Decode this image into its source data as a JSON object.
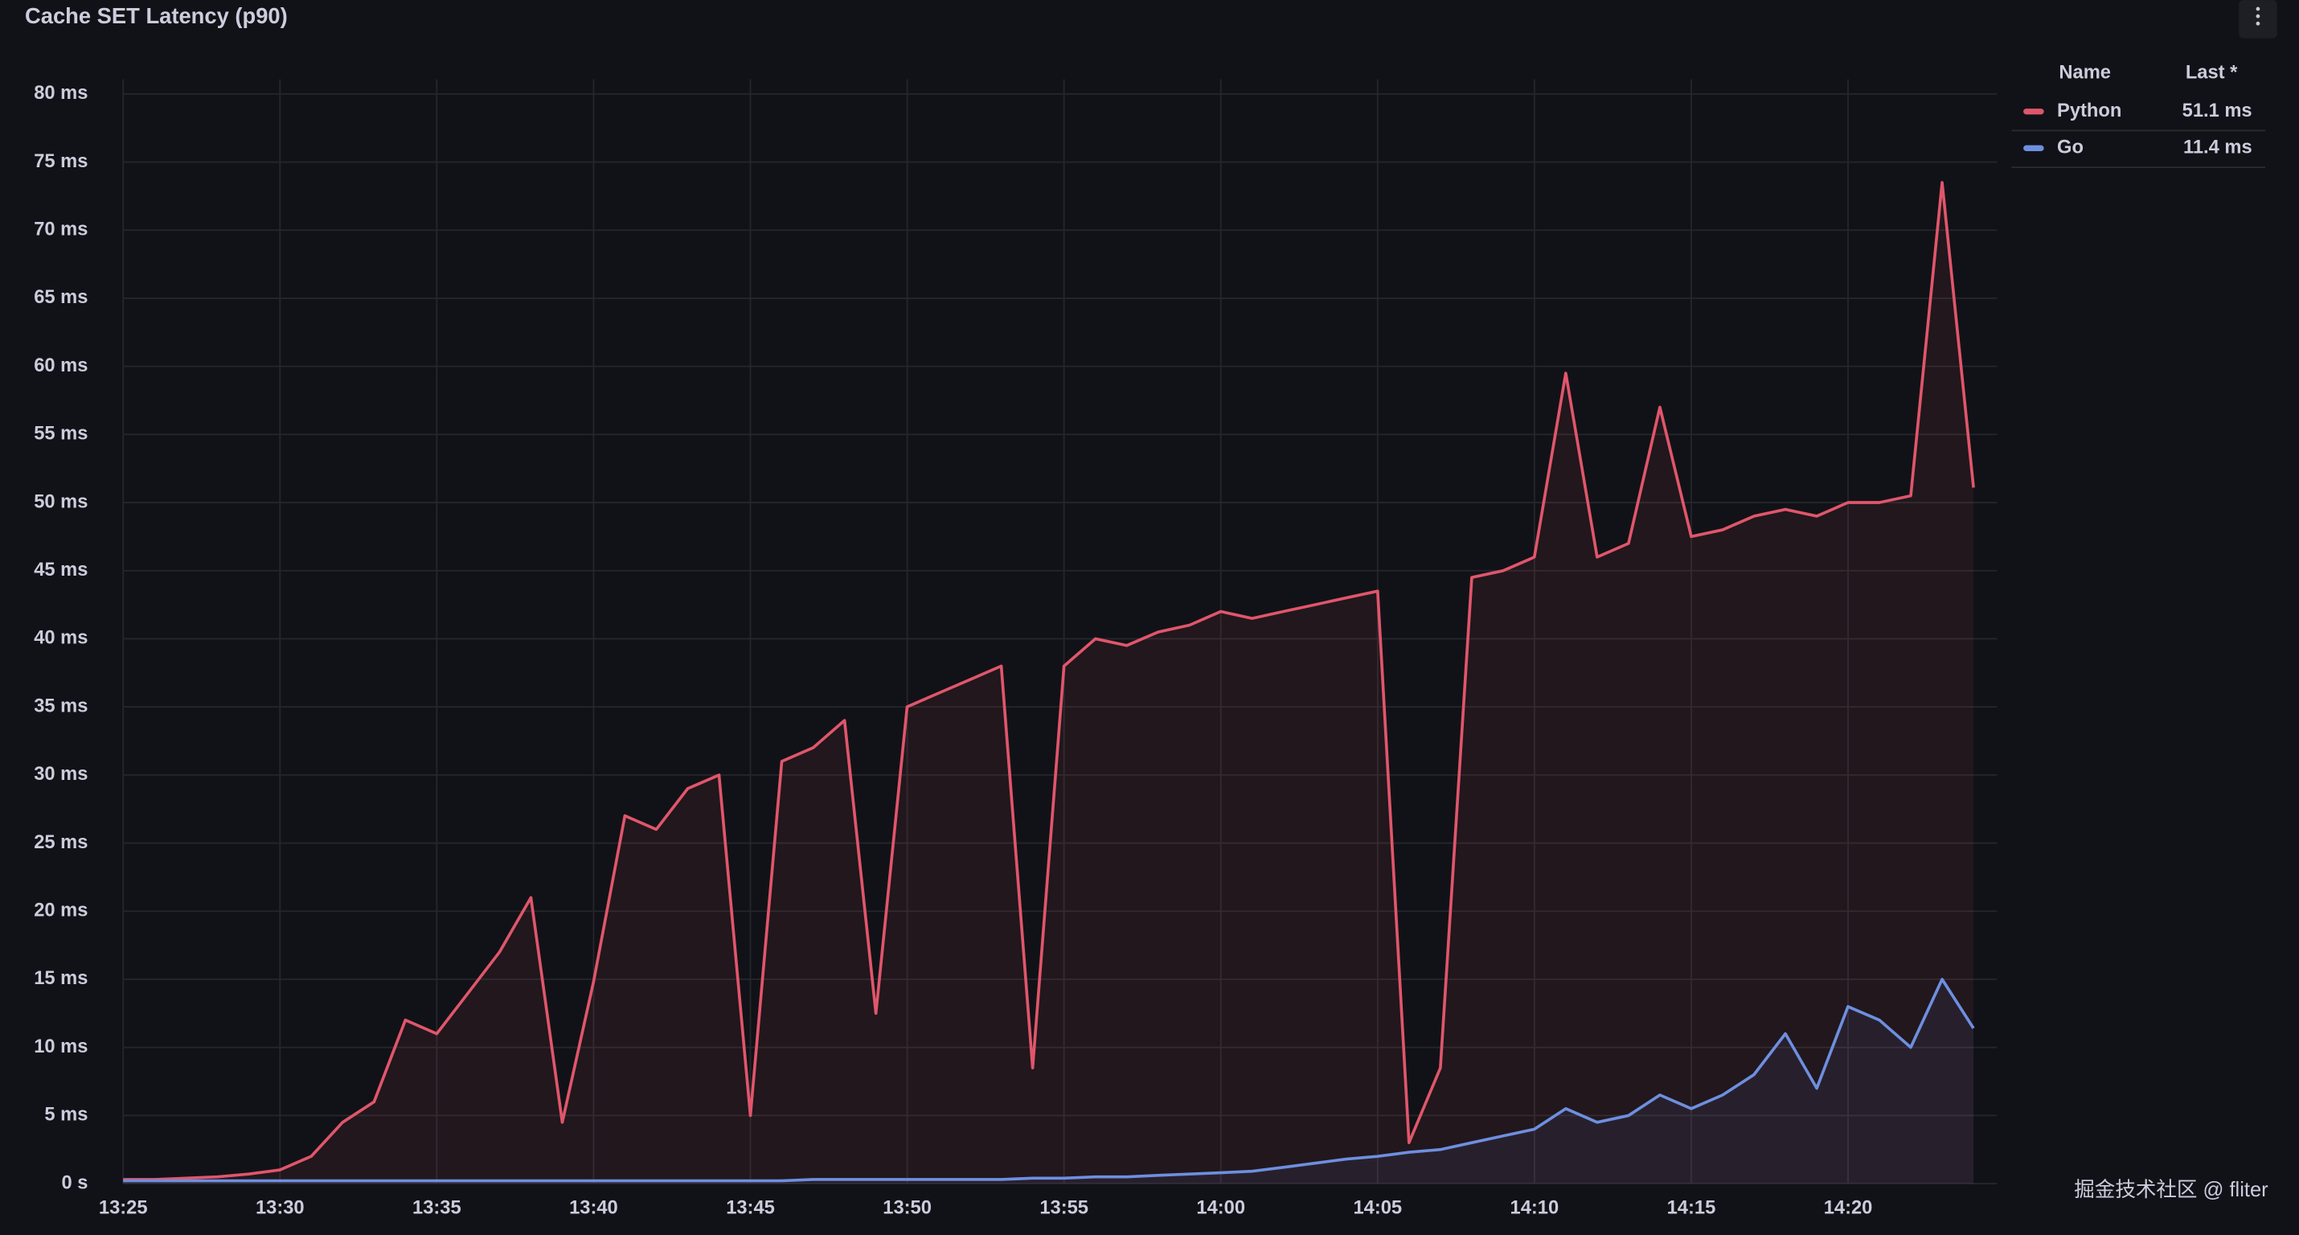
{
  "chart_data": {
    "type": "line",
    "title": "Cache SET Latency (p90)",
    "x": [
      "13:25",
      "13:26",
      "13:27",
      "13:28",
      "13:29",
      "13:30",
      "13:31",
      "13:32",
      "13:33",
      "13:34",
      "13:35",
      "13:36",
      "13:37",
      "13:38",
      "13:39",
      "13:40",
      "13:41",
      "13:42",
      "13:43",
      "13:44",
      "13:45",
      "13:46",
      "13:47",
      "13:48",
      "13:49",
      "13:50",
      "13:51",
      "13:52",
      "13:53",
      "13:54",
      "13:55",
      "13:56",
      "13:57",
      "13:58",
      "13:59",
      "14:00",
      "14:01",
      "14:02",
      "14:03",
      "14:04",
      "14:05",
      "14:06",
      "14:07",
      "14:08",
      "14:09",
      "14:10",
      "14:11",
      "14:12",
      "14:13",
      "14:14",
      "14:15",
      "14:16",
      "14:17",
      "14:18",
      "14:19",
      "14:20",
      "14:21",
      "14:22",
      "14:23",
      "14:24"
    ],
    "series": [
      {
        "name": "Python",
        "color": "#e0566b",
        "last_label": "51.1 ms",
        "values": [
          0.3,
          0.3,
          0.4,
          0.5,
          0.7,
          1,
          2,
          4.5,
          6,
          12,
          11,
          14,
          17,
          21,
          4.5,
          14.8,
          27,
          26,
          29,
          30,
          5,
          31,
          32,
          34,
          12.5,
          35,
          36,
          37,
          38,
          8.5,
          38,
          40,
          39.5,
          40.5,
          41,
          42,
          41.5,
          42,
          42.5,
          43,
          43.5,
          3,
          8.5,
          44.5,
          45,
          46,
          59.5,
          46,
          47,
          57,
          47.5,
          48,
          49,
          49.5,
          49,
          50,
          50,
          50.5,
          73.5,
          51.1
        ]
      },
      {
        "name": "Go",
        "color": "#6e8fe0",
        "last_label": "11.4 ms",
        "values": [
          0.2,
          0.2,
          0.2,
          0.2,
          0.2,
          0.2,
          0.2,
          0.2,
          0.2,
          0.2,
          0.2,
          0.2,
          0.2,
          0.2,
          0.2,
          0.2,
          0.2,
          0.2,
          0.2,
          0.2,
          0.2,
          0.2,
          0.3,
          0.3,
          0.3,
          0.3,
          0.3,
          0.3,
          0.3,
          0.4,
          0.4,
          0.5,
          0.5,
          0.6,
          0.7,
          0.8,
          0.9,
          1.2,
          1.5,
          1.8,
          2,
          2.3,
          2.5,
          3,
          3.5,
          4,
          5.5,
          4.5,
          5,
          6.5,
          5.5,
          6.5,
          8,
          11,
          7,
          13,
          12,
          10,
          15,
          11.4
        ]
      }
    ],
    "legend": {
      "columns": [
        "Name",
        "Last *"
      ]
    },
    "xlim": [
      "13:25",
      "14:24"
    ],
    "xticks": [
      "13:25",
      "13:30",
      "13:35",
      "13:40",
      "13:45",
      "13:50",
      "13:55",
      "14:00",
      "14:05",
      "14:10",
      "14:15",
      "14:20"
    ],
    "ylim": [
      0,
      80
    ],
    "yticks": [
      {
        "value": 0,
        "label": "0 s"
      },
      {
        "value": 5,
        "label": "5 ms"
      },
      {
        "value": 10,
        "label": "10 ms"
      },
      {
        "value": 15,
        "label": "15 ms"
      },
      {
        "value": 20,
        "label": "20 ms"
      },
      {
        "value": 25,
        "label": "25 ms"
      },
      {
        "value": 30,
        "label": "30 ms"
      },
      {
        "value": 35,
        "label": "35 ms"
      },
      {
        "value": 40,
        "label": "40 ms"
      },
      {
        "value": 45,
        "label": "45 ms"
      },
      {
        "value": 50,
        "label": "50 ms"
      },
      {
        "value": 55,
        "label": "55 ms"
      },
      {
        "value": 60,
        "label": "60 ms"
      },
      {
        "value": 65,
        "label": "65 ms"
      },
      {
        "value": 70,
        "label": "70 ms"
      },
      {
        "value": 75,
        "label": "75 ms"
      },
      {
        "value": 80,
        "label": "80 ms"
      }
    ],
    "grid": true,
    "legend_position": "right"
  },
  "watermark": "掘金技术社区 @ fliter"
}
